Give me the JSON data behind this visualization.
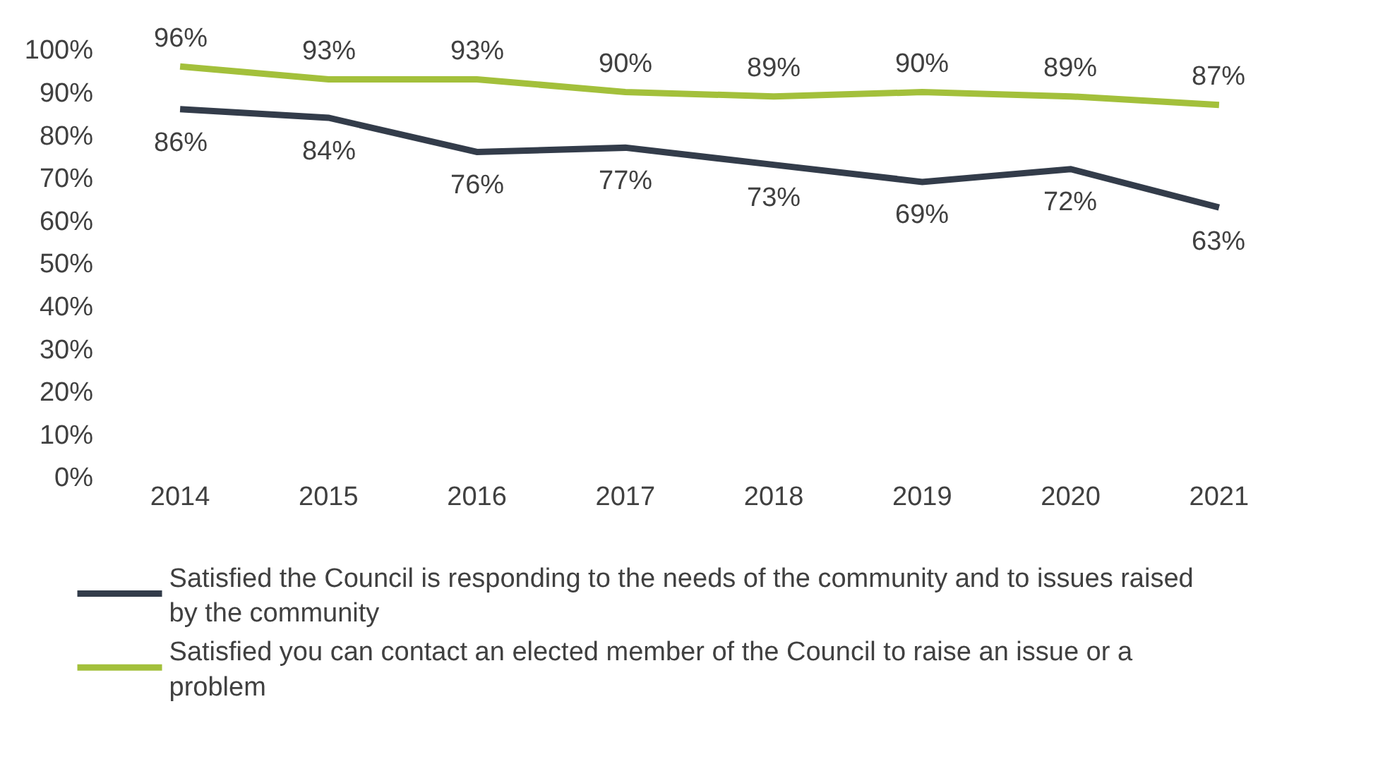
{
  "chart_data": {
    "type": "line",
    "categories": [
      "2014",
      "2015",
      "2016",
      "2017",
      "2018",
      "2019",
      "2020",
      "2021"
    ],
    "series": [
      {
        "name": "Satisfied the Council is responding to the needs of the community and to issues raised by the community",
        "color": "#333c4a",
        "values": [
          86,
          84,
          76,
          77,
          73,
          69,
          72,
          63
        ],
        "value_labels": [
          "86%",
          "84%",
          "76%",
          "77%",
          "73%",
          "69%",
          "72%",
          "63%"
        ]
      },
      {
        "name": "Satisfied you can contact an elected member of the Council to raise an issue or a problem",
        "color": "#a3c03b",
        "values": [
          96,
          93,
          93,
          90,
          89,
          90,
          89,
          87
        ],
        "value_labels": [
          "96%",
          "93%",
          "93%",
          "90%",
          "89%",
          "90%",
          "89%",
          "87%"
        ]
      }
    ],
    "ylim": [
      0,
      100
    ],
    "yticks": [
      {
        "value": 0,
        "label": "0%"
      },
      {
        "value": 10,
        "label": "10%"
      },
      {
        "value": 20,
        "label": "20%"
      },
      {
        "value": 30,
        "label": "30%"
      },
      {
        "value": 40,
        "label": "40%"
      },
      {
        "value": 50,
        "label": "50%"
      },
      {
        "value": 60,
        "label": "60%"
      },
      {
        "value": 70,
        "label": "70%"
      },
      {
        "value": 80,
        "label": "80%"
      },
      {
        "value": 90,
        "label": "90%"
      },
      {
        "value": 100,
        "label": "100%"
      }
    ],
    "legend": "bottom",
    "marker": "none",
    "line_style": "solid"
  }
}
